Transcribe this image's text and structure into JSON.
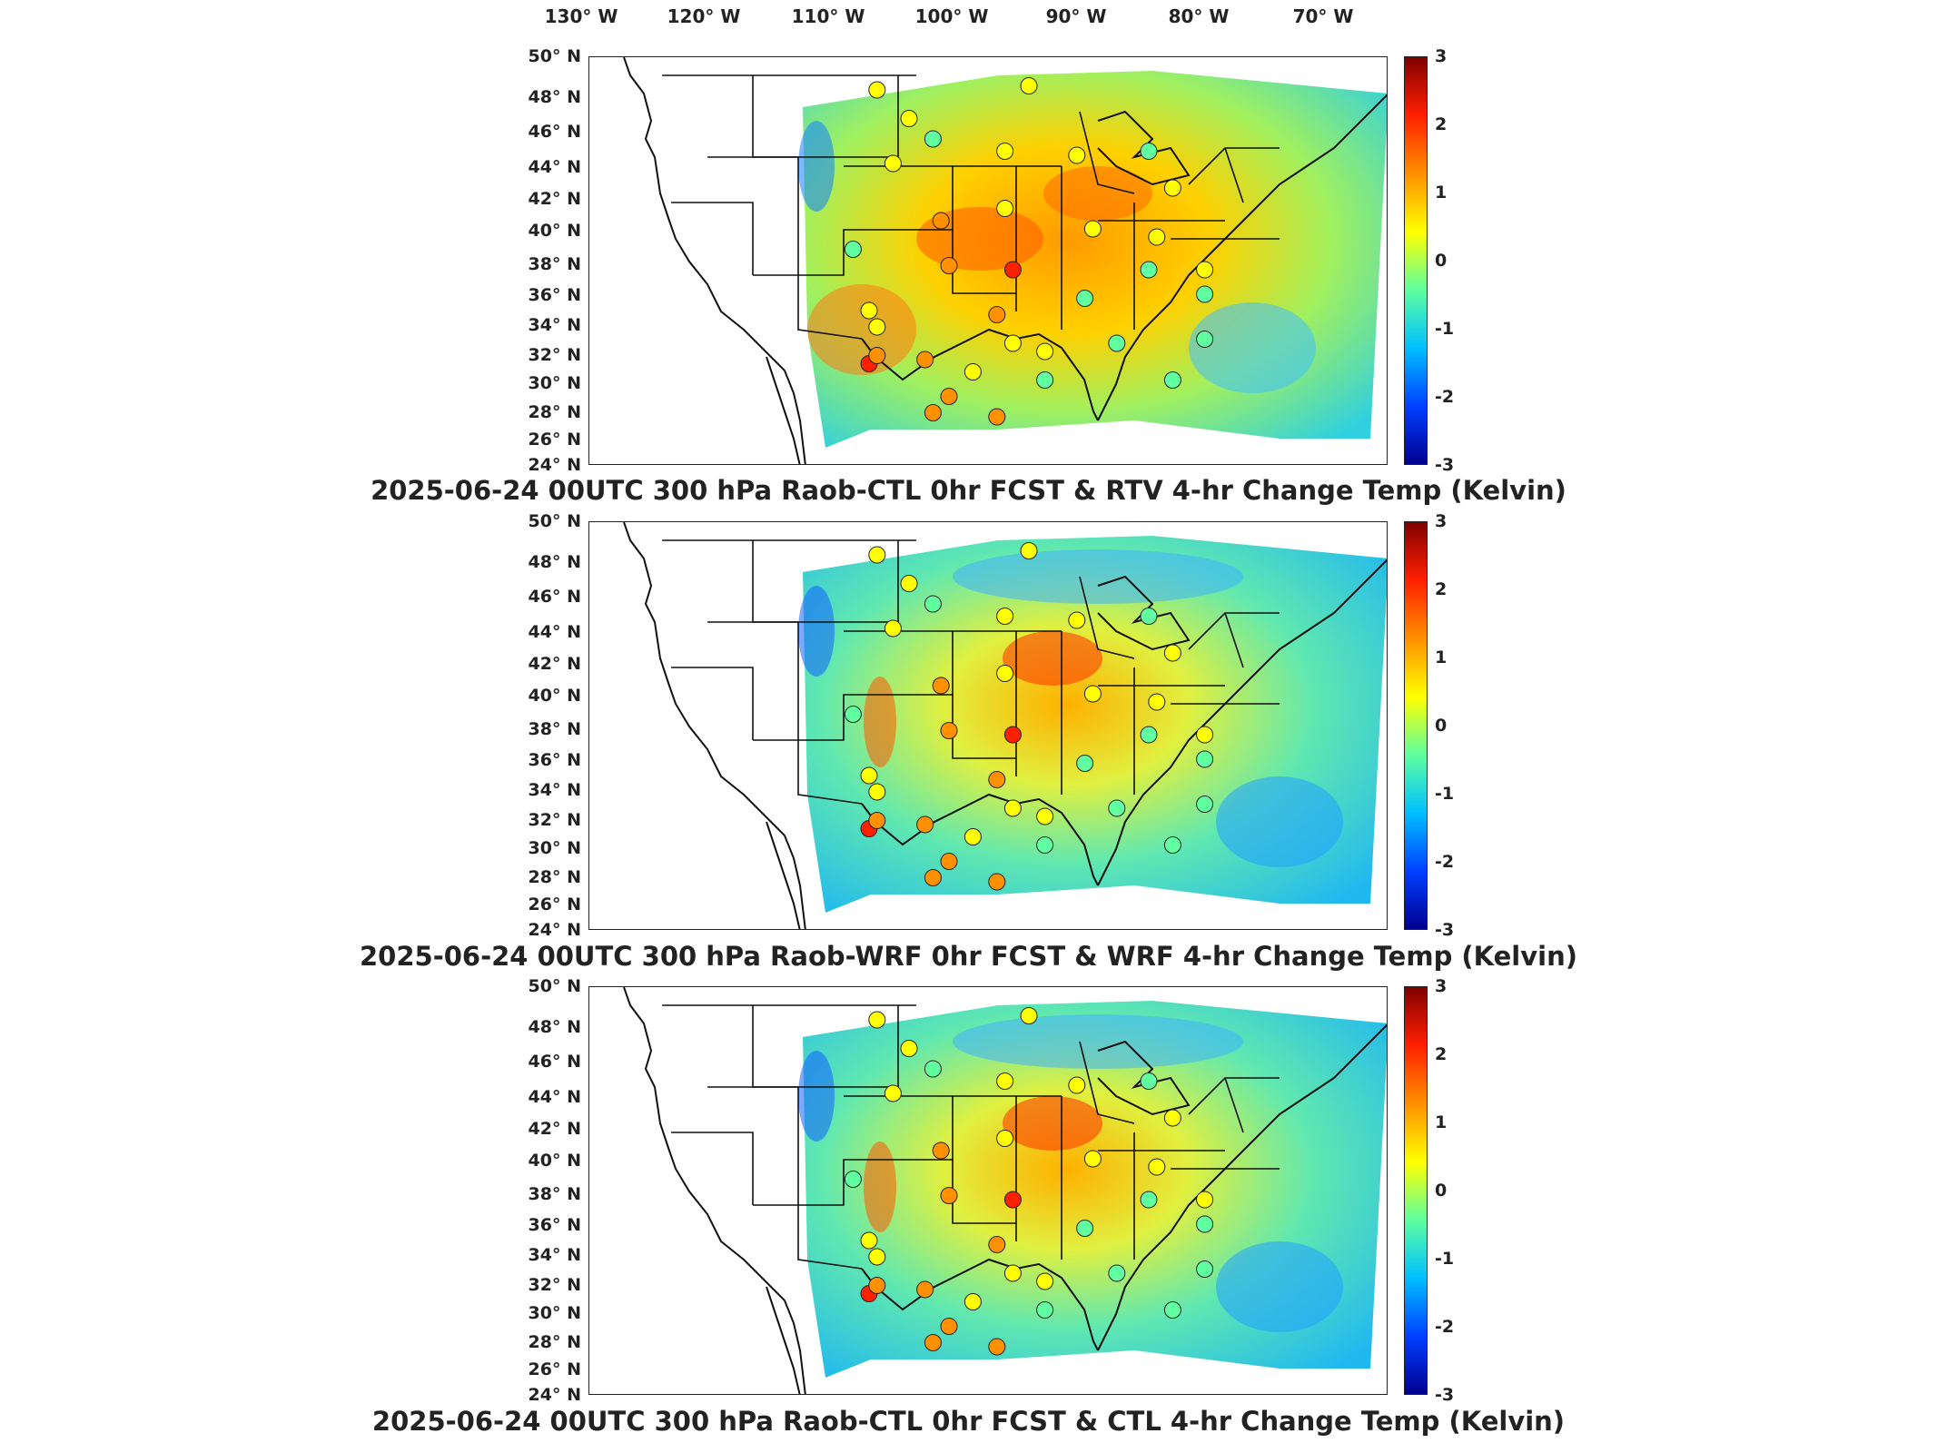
{
  "longitude_labels": [
    "130° W",
    "120° W",
    "110° W",
    "100° W",
    "90° W",
    "80° W",
    "70° W"
  ],
  "latitude_labels": [
    "50° N",
    "48° N",
    "46° N",
    "44° N",
    "42° N",
    "40° N",
    "38° N",
    "36° N",
    "34° N",
    "32° N",
    "30° N",
    "28° N",
    "26° N",
    "24° N"
  ],
  "colorbar": {
    "ticks": [
      "3",
      "2",
      "1",
      "0",
      "-1",
      "-2",
      "-3"
    ],
    "colors": [
      "#7f0000",
      "#ff2000",
      "#ff9000",
      "#ffff00",
      "#60ffa0",
      "#00c0ff",
      "#0040ff",
      "#000090"
    ]
  },
  "panels": [
    {
      "title": "2025-06-24 00UTC 300 hPa Raob-CTL 0hr FCST & RTV 4-hr Change Temp (Kelvin)"
    },
    {
      "title": "2025-06-24 00UTC 300 hPa Raob-WRF 0hr FCST & WRF 4-hr Change Temp (Kelvin)"
    },
    {
      "title": "2025-06-24 00UTC 300 hPa Raob-CTL 0hr FCST & CTL 4-hr Change Temp (Kelvin)"
    }
  ]
}
